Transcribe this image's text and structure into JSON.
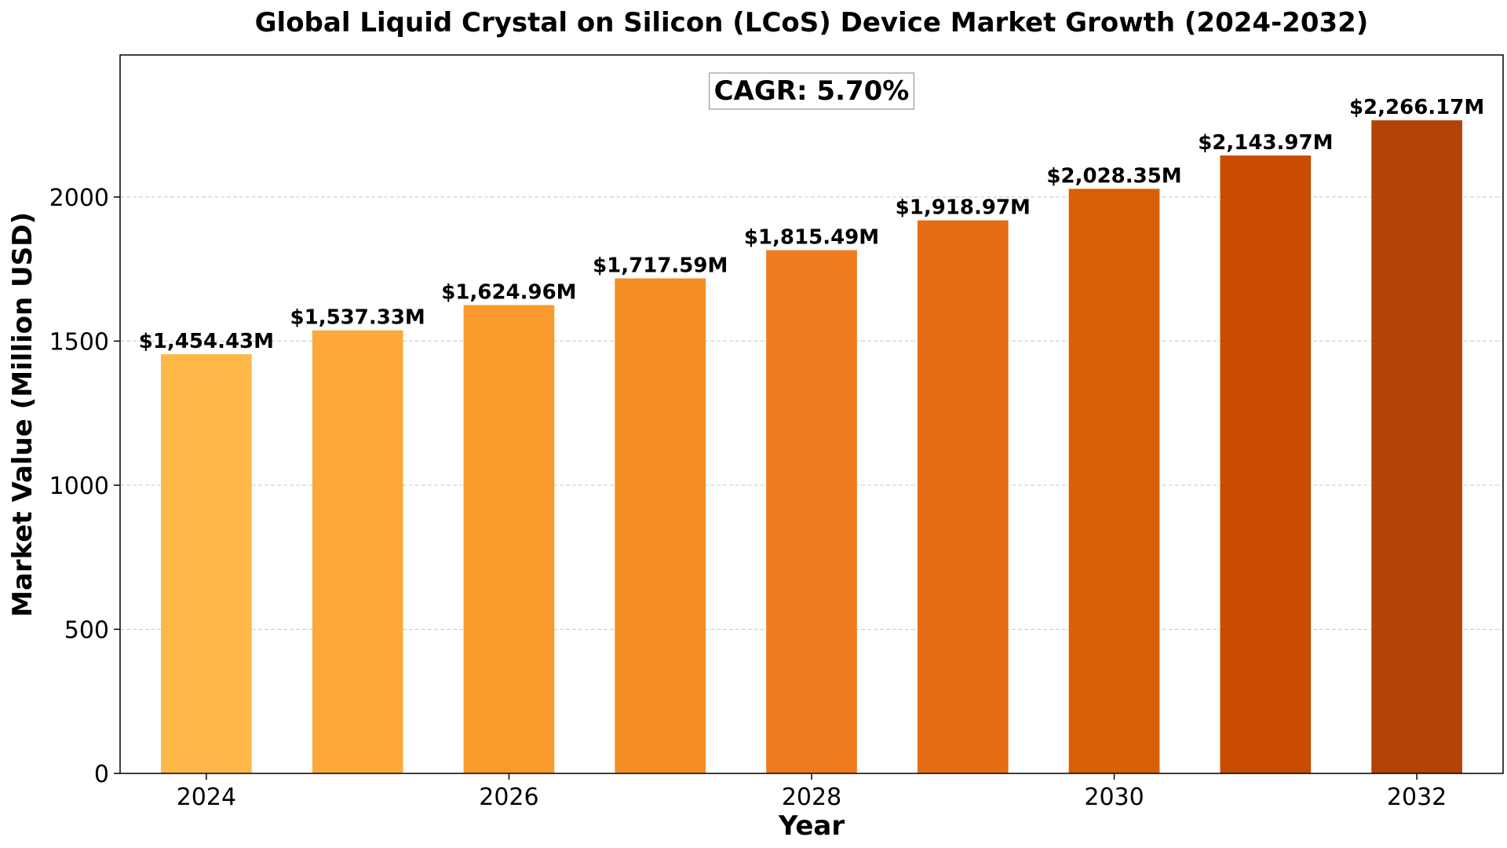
{
  "chart_data": {
    "type": "bar",
    "title": "Global Liquid Crystal on Silicon (LCoS) Device Market Growth (2024-2032)",
    "xlabel": "Year",
    "ylabel": "Market Value (Million USD)",
    "categories": [
      2024,
      2025,
      2026,
      2027,
      2028,
      2029,
      2030,
      2031,
      2032
    ],
    "values": [
      1454.43,
      1537.33,
      1624.96,
      1717.59,
      1815.49,
      1918.97,
      2028.35,
      2143.97,
      2266.17
    ],
    "data_labels": [
      "$1,454.43M",
      "$1,537.33M",
      "$1,624.96M",
      "$1,717.59M",
      "$1,815.49M",
      "$1,918.97M",
      "$2,028.35M",
      "$2,143.97M",
      "$2,266.17M"
    ],
    "bar_colors": [
      "#fdb848",
      "#fca93a",
      "#fa9a2c",
      "#f48c24",
      "#ee7c1e",
      "#e46c14",
      "#d75f08",
      "#c94c02",
      "#b44306"
    ],
    "annotation": "CAGR: 5.70%",
    "x_ticks": [
      "2024",
      "2026",
      "2028",
      "2030",
      "2032"
    ],
    "y_ticks": [
      0,
      500,
      1000,
      1500,
      2000
    ],
    "ylim": [
      0,
      2492.8
    ],
    "xlim": [
      2023.43,
      2032.57
    ],
    "grid": "horizontal dashed",
    "legend": "none"
  }
}
